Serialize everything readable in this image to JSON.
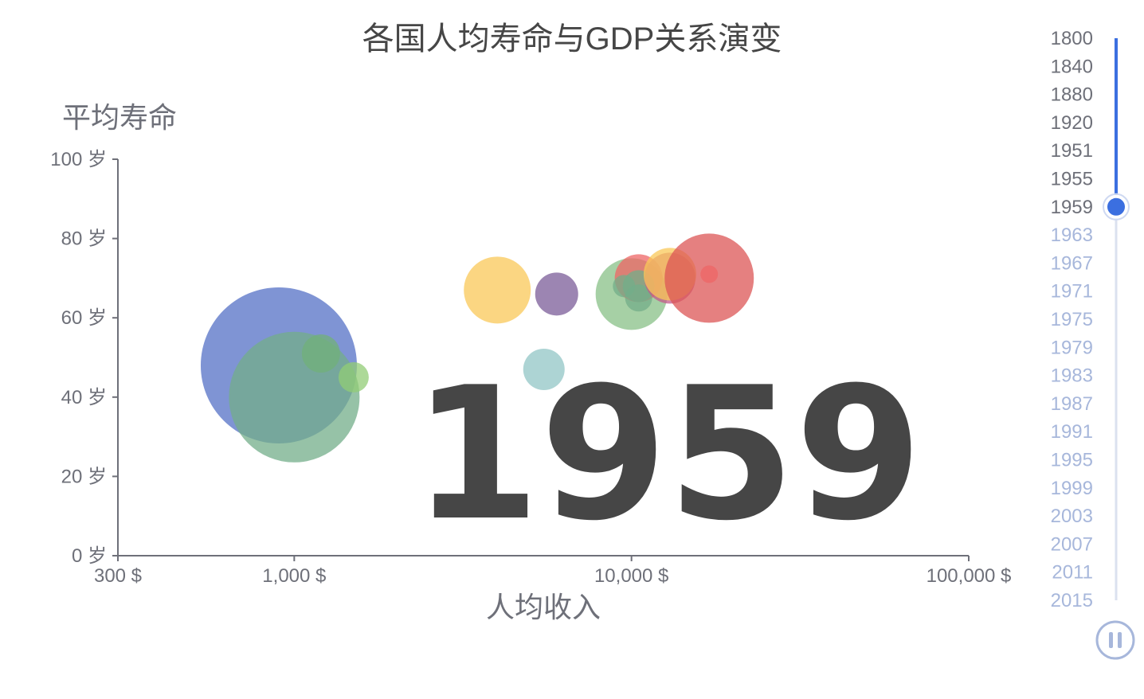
{
  "chart_data": {
    "type": "scatter",
    "title": "各国人均寿命与GDP关系演变",
    "xlabel": "人均收入",
    "ylabel": "平均寿命",
    "x_scale": "log",
    "xlim": [
      300,
      100000
    ],
    "ylim": [
      0,
      100
    ],
    "x_ticks": [
      {
        "value": 300,
        "label": "300 $"
      },
      {
        "value": 1000,
        "label": "1,000 $"
      },
      {
        "value": 10000,
        "label": "10,000 $"
      },
      {
        "value": 100000,
        "label": "100,000 $"
      }
    ],
    "y_ticks": [
      {
        "value": 0,
        "label": "0 岁"
      },
      {
        "value": 20,
        "label": "20 岁"
      },
      {
        "value": 40,
        "label": "40 岁"
      },
      {
        "value": 60,
        "label": "60 岁"
      },
      {
        "value": 80,
        "label": "80 岁"
      },
      {
        "value": 100,
        "label": "100 岁"
      }
    ],
    "grid": false,
    "current_year": "1959",
    "bubble_size_relative": true,
    "points": [
      {
        "x": 900,
        "y": 48,
        "size": 98,
        "color": "#5470c6"
      },
      {
        "x": 1000,
        "y": 40,
        "size": 82,
        "color": "#73ad8a"
      },
      {
        "x": 1200,
        "y": 51,
        "size": 24,
        "color": "#72b07a"
      },
      {
        "x": 1500,
        "y": 45,
        "size": 19,
        "color": "#91cc75"
      },
      {
        "x": 4000,
        "y": 67,
        "size": 42,
        "color": "#fac858"
      },
      {
        "x": 6000,
        "y": 66,
        "size": 27,
        "color": "#7b5c98"
      },
      {
        "x": 5500,
        "y": 47,
        "size": 26,
        "color": "#91c6c6"
      },
      {
        "x": 10000,
        "y": 66,
        "size": 45,
        "color": "#88c087"
      },
      {
        "x": 10500,
        "y": 70,
        "size": 30,
        "color": "#ee6666"
      },
      {
        "x": 10500,
        "y": 68,
        "size": 20,
        "color": "#73ad8a"
      },
      {
        "x": 9500,
        "y": 68,
        "size": 14,
        "color": "#73ad8a"
      },
      {
        "x": 10500,
        "y": 65,
        "size": 17,
        "color": "#73ad8a"
      },
      {
        "x": 13000,
        "y": 70,
        "size": 32,
        "color": "#c35b8a"
      },
      {
        "x": 13000,
        "y": 71,
        "size": 33,
        "color": "#fac858"
      },
      {
        "x": 17000,
        "y": 70,
        "size": 56,
        "color": "#dc5656"
      },
      {
        "x": 17000,
        "y": 71,
        "size": 11,
        "color": "#ee6666"
      }
    ]
  },
  "timeline": {
    "years": [
      "1800",
      "1840",
      "1880",
      "1920",
      "1951",
      "1955",
      "1959",
      "1963",
      "1967",
      "1971",
      "1975",
      "1979",
      "1983",
      "1987",
      "1991",
      "1995",
      "1999",
      "2003",
      "2007",
      "2011",
      "2015"
    ],
    "current_index": 6,
    "active_color": "#3b6fe0",
    "inactive_color": "#a7b7db",
    "past_label_color": "#6e7079",
    "future_label_color": "#a7b7db"
  },
  "controls": {
    "play_state": "pause-icon"
  }
}
